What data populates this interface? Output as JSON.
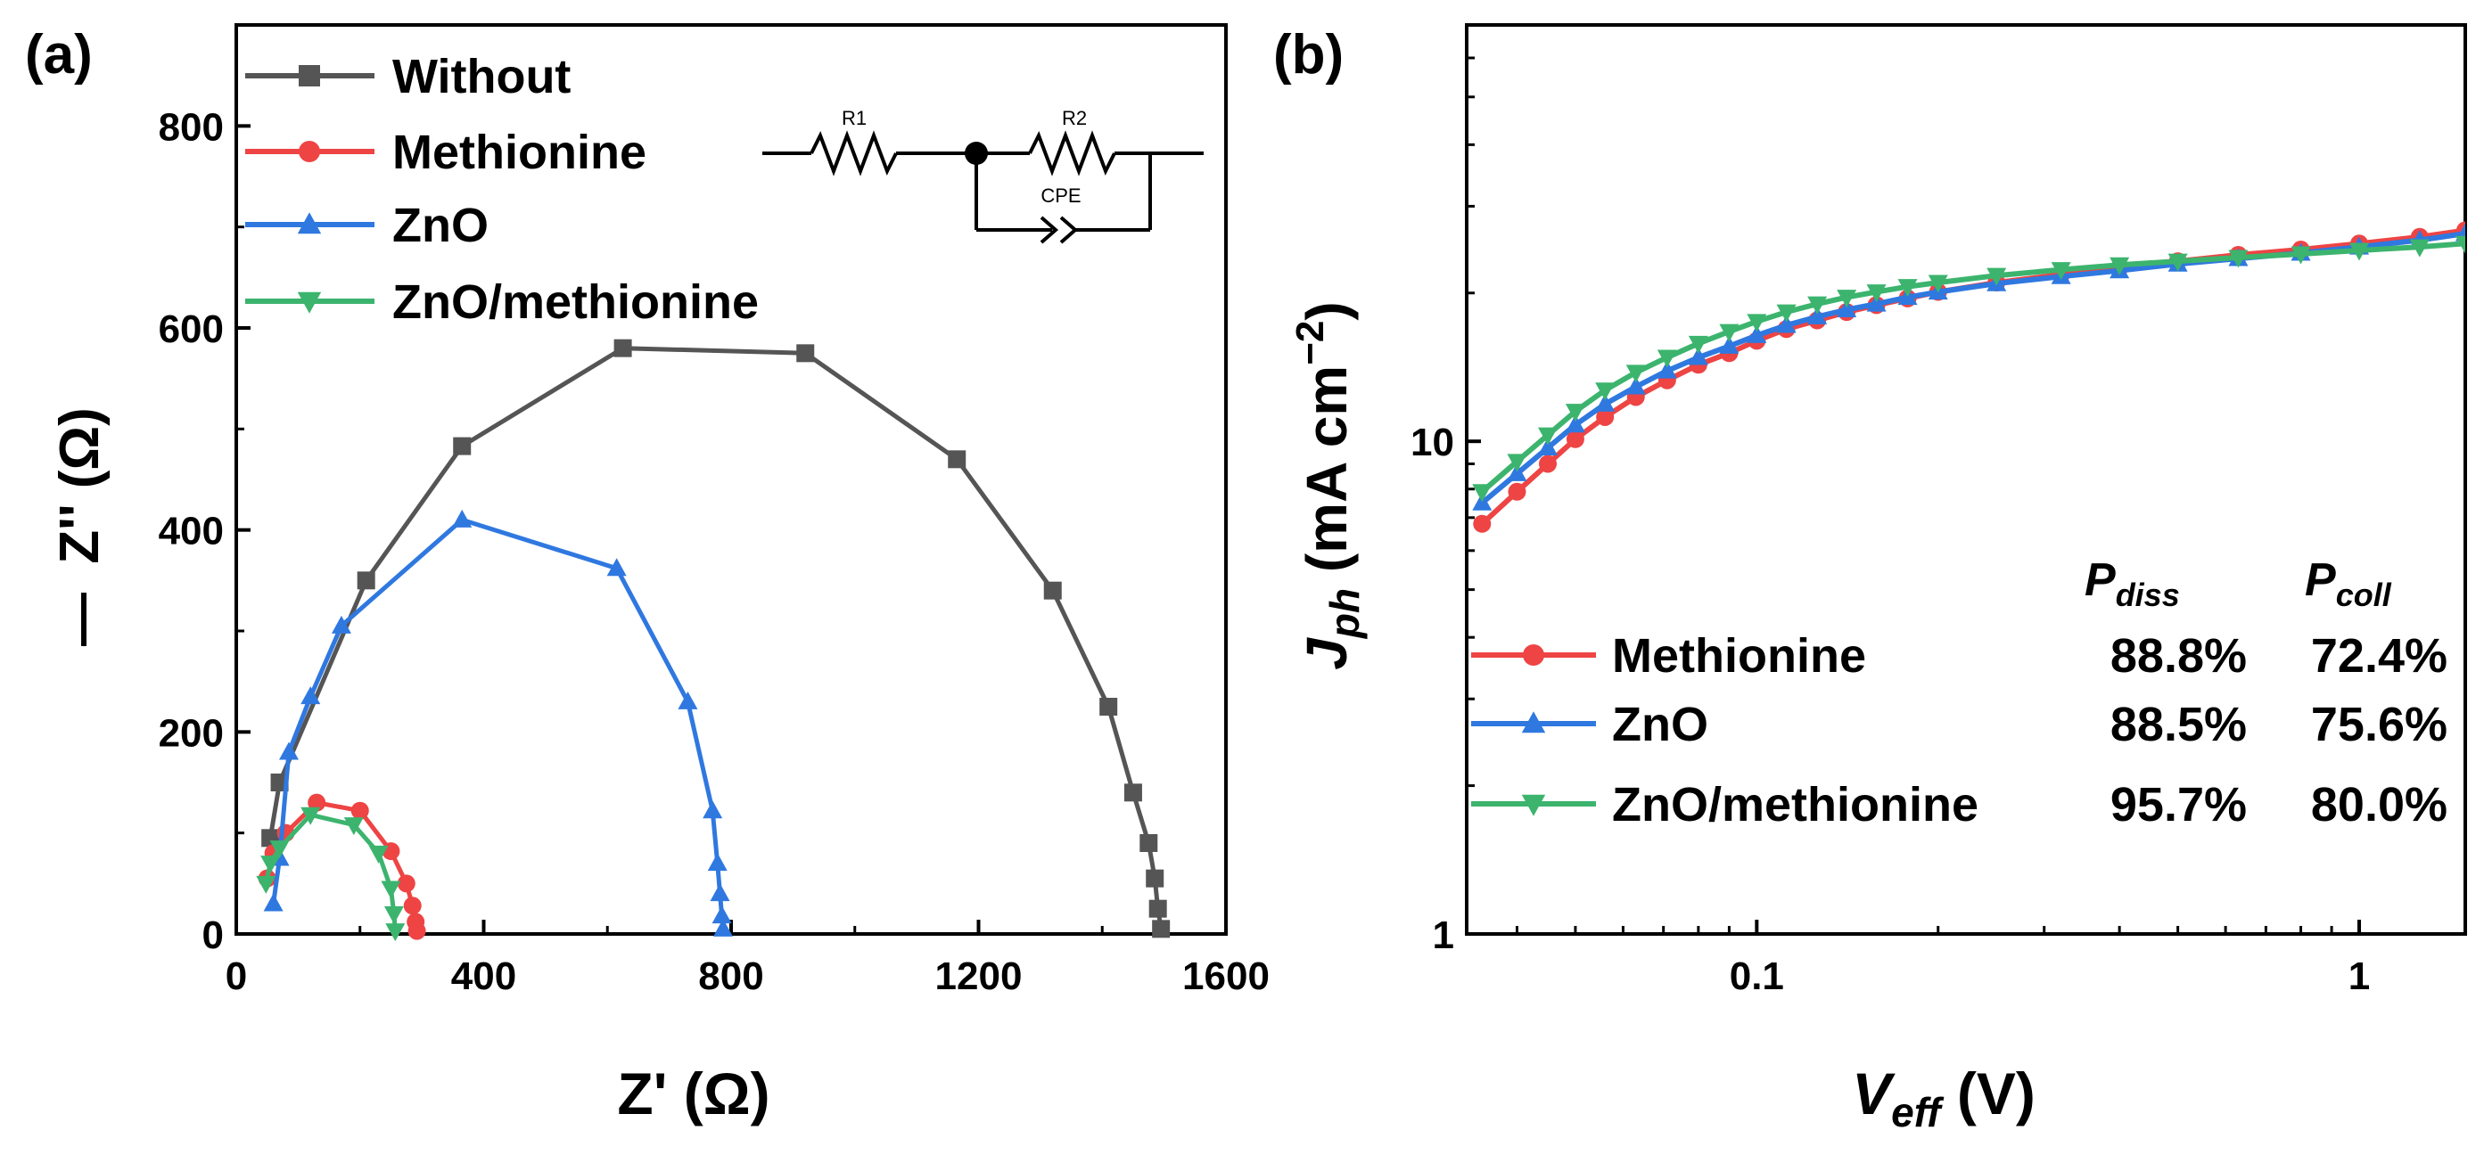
{
  "chart_data": [
    {
      "type": "line",
      "panel_label": "(a)",
      "xlabel": "Z' (Ω)",
      "ylabel": "-Z'' (Ω)",
      "ylabel_sign": "—",
      "ylabel_text": "Z'' (Ω)",
      "xlim": [
        0,
        1600
      ],
      "ylim": [
        0,
        900
      ],
      "xticks": [
        0,
        400,
        800,
        1200,
        1600
      ],
      "yticks": [
        0,
        200,
        400,
        600,
        800
      ],
      "legend_position": "top-left",
      "circuit": {
        "r1_label": "R1",
        "r2_label": "R2",
        "cpe_label": "CPE"
      },
      "series": [
        {
          "name": "Without",
          "color": "#555555",
          "marker": "square",
          "x": [
            55,
            70,
            210,
            365,
            625,
            920,
            1165,
            1320,
            1410,
            1450,
            1475,
            1485,
            1490,
            1495
          ],
          "y": [
            95,
            150,
            350,
            483,
            580,
            575,
            470,
            340,
            225,
            140,
            90,
            55,
            25,
            5
          ]
        },
        {
          "name": "Methionine",
          "color": "#ee4444",
          "marker": "circle",
          "x": [
            50,
            60,
            80,
            130,
            200,
            250,
            275,
            285,
            290,
            292
          ],
          "y": [
            55,
            80,
            100,
            130,
            122,
            82,
            50,
            28,
            12,
            3
          ]
        },
        {
          "name": "ZnO",
          "color": "#2f78e0",
          "marker": "triangle-up",
          "x": [
            60,
            70,
            85,
            120,
            170,
            365,
            615,
            730,
            770,
            778,
            782,
            785,
            787
          ],
          "y": [
            30,
            75,
            180,
            235,
            305,
            410,
            362,
            230,
            122,
            70,
            40,
            18,
            5
          ]
        },
        {
          "name": "ZnO/methionine",
          "color": "#3cb46e",
          "marker": "triangle-down",
          "x": [
            48,
            55,
            70,
            120,
            190,
            230,
            250,
            255,
            257
          ],
          "y": [
            50,
            70,
            85,
            118,
            108,
            80,
            45,
            20,
            3
          ]
        }
      ]
    },
    {
      "type": "line",
      "panel_label": "(b)",
      "xlabel": "V_eff (V)",
      "xlabel_main": "V",
      "xlabel_sub": "eff",
      "xlabel_unit": " (V)",
      "ylabel": "J_ph (mA cm^-2)",
      "ylabel_main": "J",
      "ylabel_sub": "ph",
      "ylabel_unit": " (mA cm",
      "ylabel_sup": "−2",
      "ylabel_close": ")",
      "xscale": "log",
      "yscale": "log",
      "xlim": [
        0.033,
        1.5
      ],
      "ylim": [
        1,
        70
      ],
      "xticks": [
        {
          "v": 0.1,
          "label": "0.1"
        },
        {
          "v": 1,
          "label": "1"
        }
      ],
      "yticks": [
        {
          "v": 1,
          "label": "1"
        },
        {
          "v": 10,
          "label": "10"
        }
      ],
      "legend_position": "bottom-right",
      "table_headers": {
        "p_diss_main": "P",
        "p_diss_sub": "diss",
        "p_coll_main": "P",
        "p_coll_sub": "coll"
      },
      "series": [
        {
          "name": "Methionine",
          "color": "#ee4444",
          "marker": "circle",
          "p_diss": "88.8%",
          "p_coll": "72.4%",
          "x": [
            0.035,
            0.04,
            0.045,
            0.05,
            0.056,
            0.063,
            0.071,
            0.08,
            0.09,
            0.1,
            0.112,
            0.126,
            0.141,
            0.158,
            0.178,
            0.2,
            0.25,
            0.32,
            0.4,
            0.5,
            0.63,
            0.8,
            1.0,
            1.26,
            1.5
          ],
          "y": [
            6.8,
            7.9,
            9.0,
            10.1,
            11.2,
            12.3,
            13.3,
            14.3,
            15.1,
            16.0,
            16.9,
            17.6,
            18.3,
            18.9,
            19.5,
            20.1,
            21.0,
            21.8,
            22.5,
            23.2,
            23.9,
            24.5,
            25.2,
            26.0,
            26.8
          ]
        },
        {
          "name": "ZnO",
          "color": "#2f78e0",
          "marker": "triangle-up",
          "p_diss": "88.5%",
          "p_coll": "75.6%",
          "x": [
            0.035,
            0.04,
            0.045,
            0.05,
            0.056,
            0.063,
            0.071,
            0.08,
            0.09,
            0.1,
            0.112,
            0.126,
            0.141,
            0.158,
            0.178,
            0.2,
            0.25,
            0.32,
            0.4,
            0.5,
            0.63,
            0.8,
            1.0,
            1.26,
            1.5
          ],
          "y": [
            7.5,
            8.6,
            9.7,
            10.8,
            11.9,
            12.9,
            13.9,
            14.8,
            15.6,
            16.4,
            17.2,
            17.9,
            18.5,
            19.0,
            19.6,
            20.1,
            20.9,
            21.6,
            22.2,
            22.9,
            23.5,
            24.1,
            24.8,
            25.6,
            26.4
          ]
        },
        {
          "name": "ZnO/methionine",
          "color": "#3cb46e",
          "marker": "triangle-down",
          "p_diss": "95.7%",
          "p_coll": "80.0%",
          "x": [
            0.035,
            0.04,
            0.045,
            0.05,
            0.056,
            0.063,
            0.071,
            0.08,
            0.09,
            0.1,
            0.112,
            0.126,
            0.141,
            0.158,
            0.178,
            0.2,
            0.25,
            0.32,
            0.4,
            0.5,
            0.63,
            0.8,
            1.0,
            1.26,
            1.5
          ],
          "y": [
            7.9,
            9.1,
            10.3,
            11.5,
            12.7,
            13.8,
            14.8,
            15.8,
            16.7,
            17.5,
            18.3,
            19.0,
            19.6,
            20.1,
            20.6,
            21.0,
            21.7,
            22.3,
            22.8,
            23.2,
            23.6,
            24.0,
            24.4,
            24.8,
            25.2
          ]
        }
      ]
    }
  ]
}
